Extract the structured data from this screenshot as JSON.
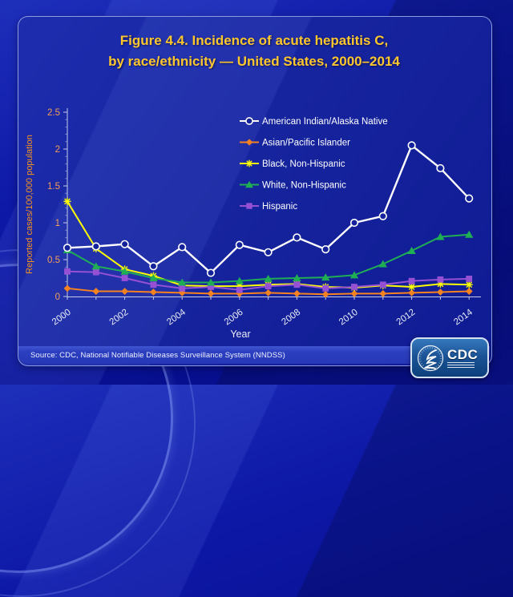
{
  "title": {
    "line1": "Figure 4.4. Incidence of acute hepatitis C,",
    "line2": "by race/ethnicity — United States, 2000–2014"
  },
  "chart_data": {
    "type": "line",
    "title": "Figure 4.4. Incidence of acute hepatitis C, by race/ethnicity — United States, 2000–2014",
    "xlabel": "Year",
    "ylabel": "Reported cases/100,000 population",
    "x": [
      2000,
      2001,
      2002,
      2003,
      2004,
      2005,
      2006,
      2007,
      2008,
      2009,
      2010,
      2011,
      2012,
      2013,
      2014
    ],
    "x_tick_labels": [
      "2000",
      "2002",
      "2004",
      "2006",
      "2008",
      "2010",
      "2012",
      "2014"
    ],
    "ylim": [
      0,
      2.5
    ],
    "y_ticks": [
      0,
      0.5,
      1,
      1.5,
      2,
      2.5
    ],
    "y_tick_labels": [
      "0",
      "0.5",
      "1",
      "1.5",
      "2",
      "2.5"
    ],
    "y_minor_tick_step": 0.1,
    "grid": false,
    "legend_position": "inside-top-right",
    "series": [
      {
        "name": "American Indian/Alaska Native",
        "color": "#ffffff",
        "marker": "circle-open",
        "values": [
          0.66,
          0.68,
          0.71,
          0.41,
          0.67,
          0.32,
          0.7,
          0.6,
          0.8,
          0.64,
          1.0,
          1.09,
          2.05,
          1.74,
          1.33
        ]
      },
      {
        "name": "Asian/Pacific Islander",
        "color": "#f58220",
        "marker": "diamond",
        "values": [
          0.11,
          0.07,
          0.07,
          0.06,
          0.05,
          0.04,
          0.04,
          0.05,
          0.04,
          0.03,
          0.04,
          0.04,
          0.05,
          0.06,
          0.07
        ]
      },
      {
        "name": "Black, Non-Hispanic",
        "color": "#ffff00",
        "marker": "asterisk",
        "values": [
          1.29,
          0.65,
          0.37,
          0.28,
          0.15,
          0.14,
          0.14,
          0.16,
          0.17,
          0.13,
          0.12,
          0.15,
          0.13,
          0.17,
          0.16
        ]
      },
      {
        "name": "White, Non-Hispanic",
        "color": "#1fae54",
        "marker": "triangle",
        "values": [
          0.63,
          0.41,
          0.34,
          0.25,
          0.19,
          0.19,
          0.21,
          0.24,
          0.25,
          0.26,
          0.29,
          0.44,
          0.62,
          0.81,
          0.84
        ]
      },
      {
        "name": "Hispanic",
        "color": "#9550d4",
        "marker": "square",
        "values": [
          0.34,
          0.33,
          0.25,
          0.16,
          0.11,
          0.13,
          0.09,
          0.14,
          0.16,
          0.11,
          0.13,
          0.16,
          0.21,
          0.23,
          0.24
        ]
      }
    ]
  },
  "footer": {
    "source_text": "Source: CDC, National Notifiable Diseases Surveillance System (NNDSS)"
  },
  "logo": {
    "agency": "CDC"
  },
  "theme": {
    "title_color": "#ffc72e",
    "axis_title_color": "#f7941d",
    "y_tick_label_color": "#f59e55",
    "x_tick_label_color": "#e9edf8",
    "legend_text_color": "#ffffff",
    "axis_line_color": "#c3cbe4",
    "panel_fill": "#14229c"
  }
}
